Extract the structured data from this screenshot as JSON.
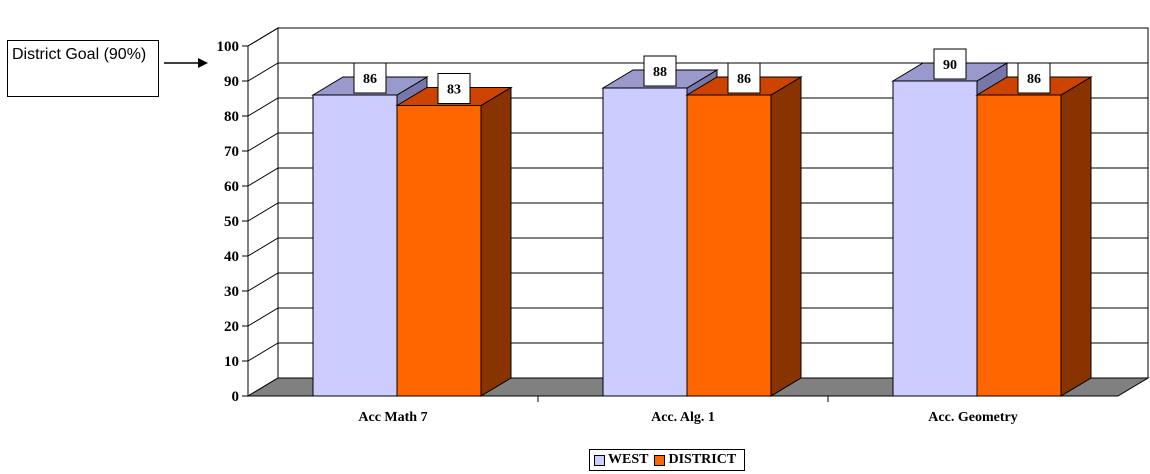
{
  "annotation": {
    "text": "District Goal (90%)"
  },
  "colors": {
    "west_front": "#CCCCFF",
    "west_top": "#9999CC",
    "west_side": "#7777AA",
    "district_front": "#FF6600",
    "district_top": "#CC4400",
    "district_side": "#883300",
    "floor": "#808080",
    "wall": "#ffffff"
  },
  "chart_data": {
    "type": "bar",
    "categories": [
      "Acc Math 7",
      "Acc. Alg. 1",
      "Acc. Geometry"
    ],
    "series": [
      {
        "name": "WEST",
        "values": [
          86,
          88,
          90
        ]
      },
      {
        "name": "DISTRICT",
        "values": [
          83,
          86,
          86
        ]
      }
    ],
    "ylim": [
      0,
      100
    ],
    "yticks": [
      0,
      10,
      20,
      30,
      40,
      50,
      60,
      70,
      80,
      90,
      100
    ],
    "grid": true,
    "legend": "bottom"
  }
}
